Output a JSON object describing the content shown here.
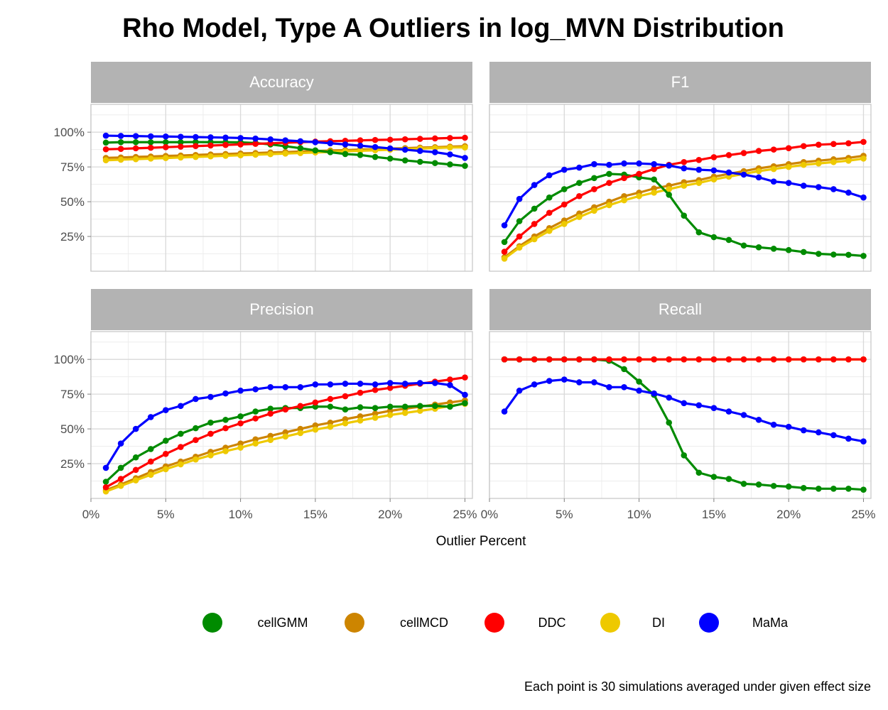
{
  "chart_data": {
    "type": "line",
    "title": "Rho Model, Type A Outliers in log_MVN Distribution",
    "xlabel": "Outlier Percent",
    "caption": "Each point is 30 simulations averaged under given effect size",
    "x": [
      1,
      2,
      3,
      4,
      5,
      6,
      7,
      8,
      9,
      10,
      11,
      12,
      13,
      14,
      15,
      16,
      17,
      18,
      19,
      20,
      21,
      22,
      23,
      24,
      25
    ],
    "xlim": [
      0,
      25.5
    ],
    "ylim": [
      0,
      1.2
    ],
    "x_ticks": [
      0,
      5,
      10,
      15,
      20,
      25
    ],
    "x_tick_labels": [
      "0%",
      "5%",
      "10%",
      "15%",
      "20%",
      "25%"
    ],
    "y_ticks": [
      0.25,
      0.5,
      0.75,
      1.0
    ],
    "y_tick_labels": [
      "25%",
      "50%",
      "75%",
      "100%"
    ],
    "grid": true,
    "legend_position": "bottom",
    "series_styles": [
      {
        "name": "cellGMM",
        "color": "#008B00"
      },
      {
        "name": "cellMCD",
        "color": "#CD8500"
      },
      {
        "name": "DDC",
        "color": "#FF0000"
      },
      {
        "name": "DI",
        "color": "#EEC900"
      },
      {
        "name": "MaMa",
        "color": "#0000FF"
      }
    ],
    "panels": [
      {
        "label": "Accuracy",
        "series": [
          {
            "name": "cellGMM",
            "values": [
              0.925,
              0.928,
              0.928,
              0.928,
              0.928,
              0.928,
              0.929,
              0.928,
              0.928,
              0.927,
              0.922,
              0.912,
              0.899,
              0.885,
              0.869,
              0.856,
              0.843,
              0.836,
              0.822,
              0.81,
              0.797,
              0.787,
              0.778,
              0.768,
              0.758
            ]
          },
          {
            "name": "cellMCD",
            "values": [
              0.815,
              0.818,
              0.822,
              0.825,
              0.829,
              0.832,
              0.836,
              0.84,
              0.843,
              0.847,
              0.85,
              0.854,
              0.857,
              0.861,
              0.864,
              0.868,
              0.871,
              0.875,
              0.878,
              0.882,
              0.885,
              0.889,
              0.892,
              0.896,
              0.899
            ]
          },
          {
            "name": "DDC",
            "values": [
              0.877,
              0.88,
              0.884,
              0.888,
              0.892,
              0.896,
              0.9,
              0.904,
              0.908,
              0.912,
              0.916,
              0.92,
              0.924,
              0.928,
              0.932,
              0.935,
              0.938,
              0.941,
              0.944,
              0.946,
              0.949,
              0.952,
              0.955,
              0.958,
              0.96
            ]
          },
          {
            "name": "DI",
            "values": [
              0.798,
              0.802,
              0.806,
              0.81,
              0.814,
              0.818,
              0.822,
              0.826,
              0.83,
              0.834,
              0.838,
              0.842,
              0.846,
              0.85,
              0.854,
              0.858,
              0.862,
              0.866,
              0.87,
              0.874,
              0.878,
              0.882,
              0.886,
              0.89,
              0.89
            ]
          },
          {
            "name": "MaMa",
            "values": [
              0.975,
              0.973,
              0.972,
              0.97,
              0.969,
              0.967,
              0.965,
              0.963,
              0.961,
              0.958,
              0.954,
              0.948,
              0.941,
              0.935,
              0.928,
              0.92,
              0.912,
              0.903,
              0.893,
              0.883,
              0.874,
              0.865,
              0.856,
              0.84,
              0.815
            ]
          }
        ]
      },
      {
        "label": "F1",
        "series": [
          {
            "name": "cellGMM",
            "values": [
              0.21,
              0.36,
              0.45,
              0.53,
              0.59,
              0.635,
              0.67,
              0.7,
              0.695,
              0.675,
              0.66,
              0.55,
              0.4,
              0.28,
              0.245,
              0.225,
              0.185,
              0.172,
              0.162,
              0.152,
              0.138,
              0.125,
              0.12,
              0.118,
              0.11
            ]
          },
          {
            "name": "cellMCD",
            "values": [
              0.1,
              0.18,
              0.25,
              0.31,
              0.365,
              0.415,
              0.46,
              0.5,
              0.54,
              0.565,
              0.595,
              0.615,
              0.64,
              0.655,
              0.68,
              0.7,
              0.72,
              0.74,
              0.755,
              0.77,
              0.785,
              0.795,
              0.805,
              0.815,
              0.83
            ]
          },
          {
            "name": "DDC",
            "values": [
              0.14,
              0.25,
              0.34,
              0.42,
              0.48,
              0.54,
              0.59,
              0.635,
              0.67,
              0.7,
              0.735,
              0.765,
              0.785,
              0.8,
              0.82,
              0.835,
              0.85,
              0.865,
              0.875,
              0.885,
              0.9,
              0.91,
              0.915,
              0.92,
              0.93
            ]
          },
          {
            "name": "DI",
            "values": [
              0.09,
              0.17,
              0.23,
              0.29,
              0.34,
              0.39,
              0.435,
              0.475,
              0.51,
              0.54,
              0.565,
              0.59,
              0.615,
              0.635,
              0.66,
              0.68,
              0.7,
              0.72,
              0.735,
              0.75,
              0.765,
              0.775,
              0.785,
              0.795,
              0.81
            ]
          },
          {
            "name": "MaMa",
            "values": [
              0.33,
              0.52,
              0.62,
              0.69,
              0.73,
              0.745,
              0.77,
              0.765,
              0.775,
              0.775,
              0.77,
              0.76,
              0.74,
              0.73,
              0.725,
              0.71,
              0.695,
              0.675,
              0.645,
              0.635,
              0.615,
              0.605,
              0.59,
              0.565,
              0.53
            ]
          }
        ]
      },
      {
        "label": "Precision",
        "series": [
          {
            "name": "cellGMM",
            "values": [
              0.12,
              0.22,
              0.295,
              0.355,
              0.415,
              0.465,
              0.505,
              0.545,
              0.565,
              0.59,
              0.625,
              0.645,
              0.65,
              0.65,
              0.66,
              0.66,
              0.64,
              0.655,
              0.65,
              0.66,
              0.66,
              0.665,
              0.665,
              0.66,
              0.685
            ]
          },
          {
            "name": "cellMCD",
            "values": [
              0.06,
              0.1,
              0.145,
              0.19,
              0.23,
              0.265,
              0.3,
              0.335,
              0.365,
              0.395,
              0.425,
              0.45,
              0.475,
              0.5,
              0.525,
              0.545,
              0.57,
              0.59,
              0.61,
              0.63,
              0.645,
              0.66,
              0.675,
              0.69,
              0.705
            ]
          },
          {
            "name": "DDC",
            "values": [
              0.08,
              0.14,
              0.205,
              0.265,
              0.32,
              0.37,
              0.42,
              0.465,
              0.505,
              0.54,
              0.575,
              0.61,
              0.64,
              0.665,
              0.69,
              0.715,
              0.735,
              0.76,
              0.78,
              0.795,
              0.81,
              0.825,
              0.84,
              0.855,
              0.87
            ]
          },
          {
            "name": "DI",
            "values": [
              0.05,
              0.09,
              0.13,
              0.17,
              0.21,
              0.245,
              0.28,
              0.31,
              0.34,
              0.365,
              0.395,
              0.42,
              0.445,
              0.47,
              0.495,
              0.515,
              0.54,
              0.56,
              0.58,
              0.6,
              0.615,
              0.63,
              0.645,
              0.665,
              0.68
            ]
          },
          {
            "name": "MaMa",
            "values": [
              0.22,
              0.395,
              0.5,
              0.585,
              0.635,
              0.665,
              0.715,
              0.73,
              0.755,
              0.775,
              0.785,
              0.8,
              0.8,
              0.8,
              0.82,
              0.82,
              0.825,
              0.825,
              0.82,
              0.83,
              0.825,
              0.83,
              0.83,
              0.815,
              0.745
            ]
          }
        ]
      },
      {
        "label": "Recall",
        "series": [
          {
            "name": "cellGMM",
            "values": [
              1.0,
              1.0,
              1.0,
              1.0,
              1.0,
              1.0,
              1.0,
              0.99,
              0.93,
              0.84,
              0.745,
              0.545,
              0.31,
              0.185,
              0.155,
              0.14,
              0.105,
              0.1,
              0.09,
              0.085,
              0.075,
              0.07,
              0.07,
              0.07,
              0.063
            ]
          },
          {
            "name": "cellMCD",
            "values": [
              1.0,
              1.0,
              1.0,
              1.0,
              1.0,
              1.0,
              1.0,
              1.0,
              1.0,
              1.0,
              1.0,
              1.0,
              1.0,
              1.0,
              1.0,
              1.0,
              1.0,
              1.0,
              1.0,
              1.0,
              1.0,
              1.0,
              1.0,
              1.0,
              1.0
            ]
          },
          {
            "name": "DDC",
            "values": [
              1.0,
              1.0,
              1.0,
              1.0,
              1.0,
              1.0,
              1.0,
              1.0,
              1.0,
              1.0,
              1.0,
              1.0,
              1.0,
              1.0,
              1.0,
              1.0,
              1.0,
              1.0,
              1.0,
              1.0,
              1.0,
              1.0,
              1.0,
              1.0,
              1.0
            ]
          },
          {
            "name": "DI",
            "values": [
              1.0,
              1.0,
              1.0,
              1.0,
              1.0,
              1.0,
              1.0,
              1.0,
              1.0,
              1.0,
              1.0,
              1.0,
              1.0,
              1.0,
              1.0,
              1.0,
              1.0,
              1.0,
              1.0,
              1.0,
              1.0,
              1.0,
              1.0,
              1.0,
              1.0
            ]
          },
          {
            "name": "MaMa",
            "values": [
              0.625,
              0.775,
              0.82,
              0.845,
              0.855,
              0.835,
              0.835,
              0.8,
              0.8,
              0.775,
              0.755,
              0.725,
              0.685,
              0.67,
              0.65,
              0.625,
              0.6,
              0.565,
              0.53,
              0.515,
              0.49,
              0.475,
              0.455,
              0.43,
              0.41
            ]
          }
        ]
      }
    ]
  }
}
